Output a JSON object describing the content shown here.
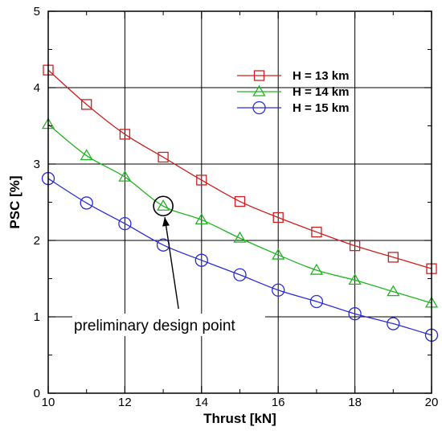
{
  "chart_data": {
    "type": "line",
    "xlabel": "Thrust [kN]",
    "ylabel": "PSC [%]",
    "xlim": [
      10,
      20
    ],
    "ylim": [
      0,
      5
    ],
    "x_ticks": [
      10,
      12,
      14,
      16,
      18,
      20
    ],
    "y_ticks": [
      0,
      1,
      2,
      3,
      4,
      5
    ],
    "grid": true,
    "legend_position": "top-right",
    "x": [
      10,
      11,
      12,
      13,
      14,
      15,
      16,
      17,
      18,
      19,
      20
    ],
    "series": [
      {
        "name": "H = 13 km",
        "color": "#cc1f1f",
        "marker": "square",
        "values": [
          4.23,
          3.78,
          3.39,
          3.09,
          2.79,
          2.51,
          2.3,
          2.11,
          1.93,
          1.78,
          1.63
        ]
      },
      {
        "name": "H = 14 km",
        "color": "#22b322",
        "marker": "triangle",
        "values": [
          3.52,
          3.11,
          2.83,
          2.45,
          2.27,
          2.03,
          1.81,
          1.61,
          1.48,
          1.33,
          1.18
        ]
      },
      {
        "name": "H = 15 km",
        "color": "#2b2bd6",
        "marker": "circle",
        "values": [
          2.81,
          2.49,
          2.22,
          1.94,
          1.74,
          1.55,
          1.35,
          1.2,
          1.04,
          0.91,
          0.76
        ]
      }
    ],
    "annotations": [
      {
        "text": "preliminary design point",
        "x": 13,
        "y": 2.45,
        "text_x": 13.4,
        "text_y": 1.0
      }
    ]
  }
}
